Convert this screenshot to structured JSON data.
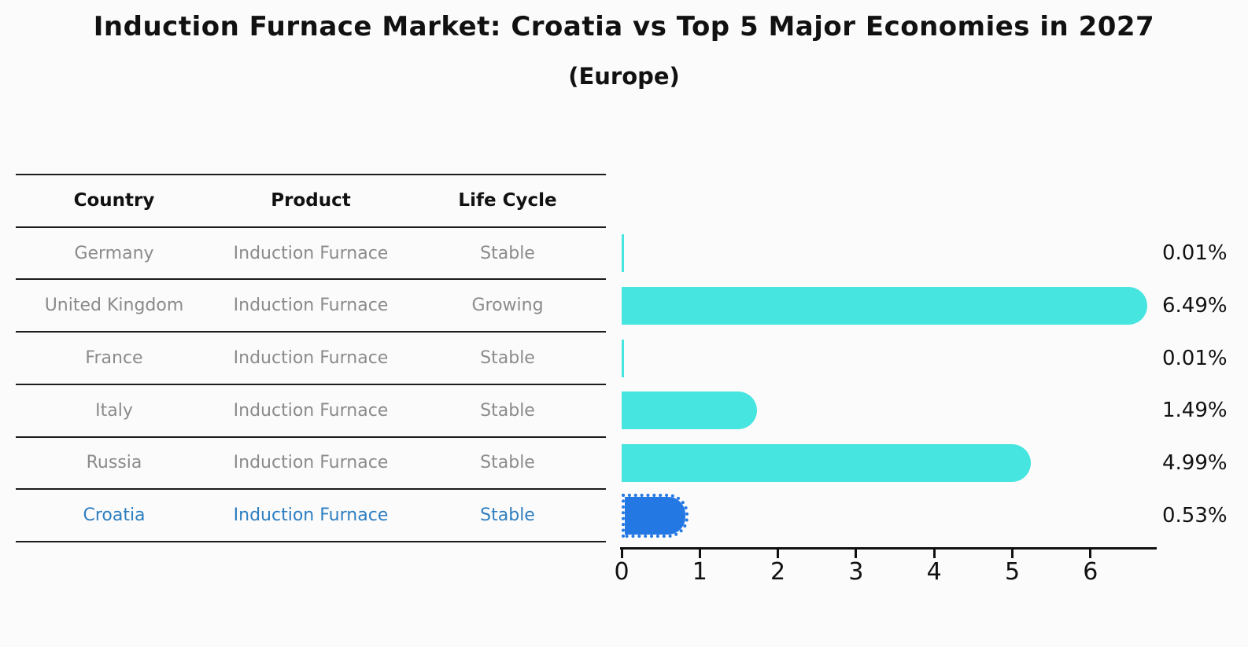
{
  "title": "Induction Furnace Market: Croatia vs Top 5 Major Economies in 2027",
  "subtitle": "(Europe)",
  "table": {
    "headers": [
      "Country",
      "Product",
      "Life Cycle"
    ],
    "rows": [
      {
        "country": "Germany",
        "product": "Induction Furnace",
        "life_cycle": "Stable",
        "highlight": false
      },
      {
        "country": "United Kingdom",
        "product": "Induction Furnace",
        "life_cycle": "Growing",
        "highlight": false
      },
      {
        "country": "France",
        "product": "Induction Furnace",
        "life_cycle": "Stable",
        "highlight": false
      },
      {
        "country": "Italy",
        "product": "Induction Furnace",
        "life_cycle": "Stable",
        "highlight": false
      },
      {
        "country": "Russia",
        "product": "Induction Furnace",
        "life_cycle": "Stable",
        "highlight": false
      },
      {
        "country": "Croatia",
        "product": "Induction Furnace",
        "life_cycle": "Stable",
        "highlight": true
      }
    ]
  },
  "chart_data": {
    "type": "bar",
    "orientation": "horizontal",
    "title": "Induction Furnace Market: Croatia vs Top 5 Major Economies in 2027",
    "subtitle": "(Europe)",
    "categories": [
      "Germany",
      "United Kingdom",
      "France",
      "Italy",
      "Russia",
      "Croatia"
    ],
    "values": [
      0.01,
      6.49,
      0.01,
      1.49,
      4.99,
      0.53
    ],
    "value_labels": [
      "0.01%",
      "6.49%",
      "0.01%",
      "1.49%",
      "4.99%",
      "0.53%"
    ],
    "xlabel": "",
    "ylabel": "",
    "x_ticks": [
      0,
      1,
      2,
      3,
      4,
      5,
      6
    ],
    "xlim": [
      0,
      6.85
    ],
    "grid": false,
    "legend": null,
    "bar_color": "#46e5e0",
    "highlight_bar_color": "#2478e4",
    "highlight_index": 5,
    "highlight_style": "dotted-border rounded-end"
  },
  "colors": {
    "background": "#fbfbfb",
    "bar": "#46e5e0",
    "highlight_bar": "#2478e4",
    "highlight_text": "#2e7ec0",
    "row_text": "#8b8b8b",
    "header_text": "#111111",
    "line": "#1c1c1c"
  }
}
